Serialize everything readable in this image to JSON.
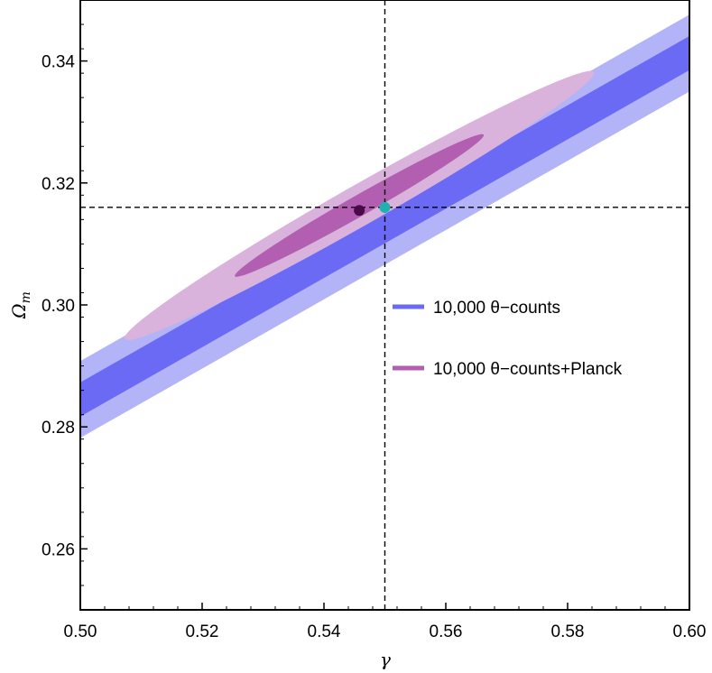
{
  "chart_data": {
    "type": "contour",
    "xlabel": "γ",
    "ylabel_main": "Ω",
    "ylabel_sub": "m",
    "xlim": [
      0.5,
      0.6
    ],
    "ylim": [
      0.25,
      0.35
    ],
    "xticks": [
      "0.50",
      "0.52",
      "0.54",
      "0.56",
      "0.58",
      "0.60"
    ],
    "yticks": [
      "0.26",
      "0.28",
      "0.30",
      "0.32",
      "0.34"
    ],
    "xtick_values": [
      0.5,
      0.52,
      0.54,
      0.56,
      0.58,
      0.6
    ],
    "ytick_values": [
      0.26,
      0.28,
      0.3,
      0.32,
      0.34
    ],
    "reference_lines": {
      "x": 0.55,
      "y": 0.316
    },
    "series": [
      {
        "name": "10,000 θ−counts",
        "kind": "band",
        "slope": 0.568,
        "intercept_at_0_5": 0.2845,
        "half_width_1sigma": 0.0028,
        "half_width_2sigma": 0.0063,
        "color_1sigma": "#6a6af5",
        "color_2sigma": "#b3b3f7"
      },
      {
        "name": "10,000 θ−counts+Planck",
        "kind": "ellipse",
        "center": [
          0.5458,
          0.3163
        ],
        "angle_direction": [
          1,
          0.568
        ],
        "semi_major_2sigma": 0.0443,
        "semi_minor_2sigma": 0.0033,
        "semi_major_1sigma": 0.0235,
        "semi_minor_1sigma": 0.0017,
        "color_1sigma": "#b25fb2",
        "color_2sigma": "#d9b3dc"
      }
    ],
    "points": [
      {
        "x": 0.5458,
        "y": 0.3155,
        "color": "#4a0a4a"
      },
      {
        "x": 0.55,
        "y": 0.316,
        "color": "#20b0b0"
      }
    ],
    "legend_position": "center-right",
    "legend_colors": [
      "#6a6af5",
      "#b25fb2"
    ]
  }
}
